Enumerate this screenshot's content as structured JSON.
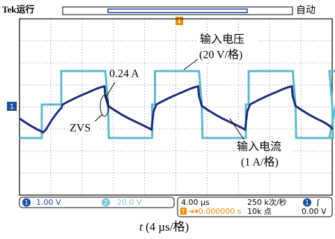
{
  "header": {
    "status": "Tek运行",
    "trigger_marker": "T",
    "mode": "自动"
  },
  "channel_marker": "1",
  "annotations": {
    "current_point": "0.24 A",
    "zvs": "ZVS",
    "voltage_title": "输入电压",
    "voltage_scale": "(20 V/格)",
    "current_title": "输入电流",
    "current_scale": "(1 A/格)"
  },
  "status_bar": {
    "ch1_badge": "1",
    "ch1_scale": "1.00 V",
    "ch2_badge": "2",
    "ch2_scale": "20.0 V",
    "timebase": "4.00 µs",
    "sample_rate": "250 k次/秒",
    "trigger_badge": "1",
    "trigger_slope": "ʃ",
    "trigger_t": "T",
    "trigger_position": "➔▾0.000000 s",
    "record_length": "10k 点",
    "trigger_level": "0.00 V"
  },
  "caption": {
    "variable": "t",
    "scale": "(4 µs/格)"
  }
}
